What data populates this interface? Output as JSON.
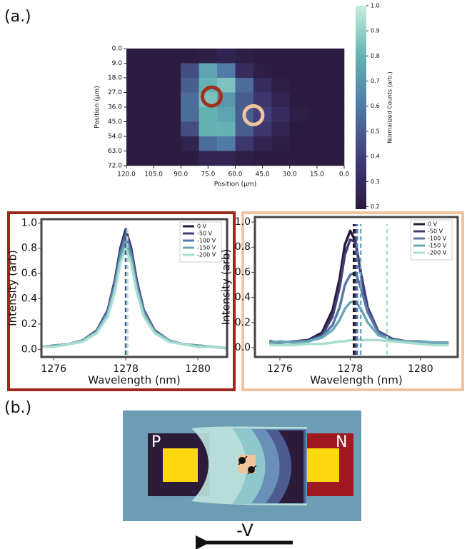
{
  "panel_labels": [
    "(a.)",
    "(b.)"
  ],
  "diagram": {
    "p_label": "P",
    "n_label": "N",
    "bias": "-V"
  },
  "chart_data": [
    {
      "type": "heatmap",
      "xlabel": "Position (μm)",
      "ylabel": "Position (μm)",
      "x": [
        115,
        105,
        95,
        85,
        75,
        65,
        55,
        45,
        35,
        25,
        15,
        5
      ],
      "y": [
        4.5,
        13.5,
        22.5,
        31.5,
        40.5,
        49.5,
        58.5,
        67.5
      ],
      "values": [
        [
          0.2,
          0.2,
          0.2,
          0.2,
          0.22,
          0.25,
          0.22,
          0.2,
          0.2,
          0.2,
          0.2,
          0.2
        ],
        [
          0.2,
          0.2,
          0.2,
          0.45,
          0.75,
          0.6,
          0.3,
          0.22,
          0.2,
          0.2,
          0.2,
          0.2
        ],
        [
          0.2,
          0.2,
          0.2,
          0.5,
          0.8,
          0.85,
          0.55,
          0.3,
          0.22,
          0.2,
          0.2,
          0.2
        ],
        [
          0.2,
          0.2,
          0.2,
          0.55,
          0.85,
          0.7,
          0.5,
          0.35,
          0.25,
          0.2,
          0.2,
          0.2
        ],
        [
          0.2,
          0.2,
          0.2,
          0.55,
          0.8,
          0.75,
          0.5,
          0.4,
          0.3,
          0.22,
          0.2,
          0.2
        ],
        [
          0.2,
          0.2,
          0.2,
          0.45,
          0.8,
          0.8,
          0.5,
          0.35,
          0.25,
          0.2,
          0.2,
          0.2
        ],
        [
          0.2,
          0.2,
          0.2,
          0.25,
          0.55,
          0.6,
          0.35,
          0.25,
          0.22,
          0.2,
          0.2,
          0.2
        ],
        [
          0.2,
          0.2,
          0.2,
          0.2,
          0.25,
          0.25,
          0.22,
          0.2,
          0.2,
          0.2,
          0.2,
          0.2
        ]
      ],
      "xlim": [
        120,
        0
      ],
      "ylim": [
        0,
        72
      ],
      "y_inverted": true,
      "xticks": [
        {
          "value": 120,
          "label": "120.0"
        },
        {
          "value": 105,
          "label": "105.0"
        },
        {
          "value": 90,
          "label": "90.0"
        },
        {
          "value": 75,
          "label": "75.0"
        },
        {
          "value": 60,
          "label": "60.0"
        },
        {
          "value": 45,
          "label": "45.0"
        },
        {
          "value": 30,
          "label": "30.0"
        },
        {
          "value": 15,
          "label": "15.0"
        },
        {
          "value": 0,
          "label": "0.0"
        }
      ],
      "yticks": [
        {
          "value": 0,
          "label": "0.0"
        },
        {
          "value": 9,
          "label": "9.0"
        },
        {
          "value": 18,
          "label": "18.0"
        },
        {
          "value": 27,
          "label": "27.0"
        },
        {
          "value": 36,
          "label": "36.0"
        },
        {
          "value": 45,
          "label": "45.0"
        },
        {
          "value": 54,
          "label": "54.0"
        },
        {
          "value": 63,
          "label": "63.0"
        },
        {
          "value": 72,
          "label": "72.0"
        }
      ],
      "colormap": [
        "#2b1a3f",
        "#403d78",
        "#4f7aa6",
        "#64b1b4",
        "#c8eedd"
      ],
      "colorbar": {
        "label": "Normalized Counts (arb.)",
        "lim": [
          0.19,
          1.0
        ],
        "ticks": [
          {
            "value": 0.2,
            "label": "0.2"
          },
          {
            "value": 0.3,
            "label": "0.3"
          },
          {
            "value": 0.4,
            "label": "0.4"
          },
          {
            "value": 0.5,
            "label": "0.5"
          },
          {
            "value": 0.6,
            "label": "0.6"
          },
          {
            "value": 0.7,
            "label": "0.7"
          },
          {
            "value": 0.8,
            "label": "0.8"
          },
          {
            "value": 0.9,
            "label": "0.9"
          },
          {
            "value": 1.0,
            "label": "1.0"
          }
        ]
      },
      "markers": [
        {
          "x": 73,
          "y": 29.5,
          "color": "#a0301e"
        },
        {
          "x": 50,
          "y": 41,
          "color": "#f2c49d"
        }
      ]
    },
    {
      "type": "line",
      "xlabel": "Wavelength (nm)",
      "ylabel": "Intensity (arb)",
      "frame_color": "#9b2a1a",
      "x": [
        1275.7,
        1276.0,
        1276.4,
        1276.8,
        1277.2,
        1277.5,
        1277.7,
        1277.85,
        1278.0,
        1278.15,
        1278.3,
        1278.5,
        1278.8,
        1279.2,
        1279.6,
        1280.0,
        1280.4,
        1280.8
      ],
      "series": [
        {
          "name": "0 V",
          "color": "#2a1838",
          "center": 1278.0,
          "values": [
            0.02,
            0.03,
            0.04,
            0.07,
            0.15,
            0.31,
            0.55,
            0.8,
            0.95,
            0.8,
            0.55,
            0.31,
            0.15,
            0.07,
            0.04,
            0.03,
            0.02,
            0.01
          ]
        },
        {
          "name": "-50 V",
          "color": "#3f3f78",
          "center": 1278.0,
          "values": [
            0.02,
            0.03,
            0.04,
            0.07,
            0.15,
            0.31,
            0.54,
            0.79,
            0.93,
            0.79,
            0.54,
            0.31,
            0.15,
            0.07,
            0.04,
            0.03,
            0.02,
            0.01
          ]
        },
        {
          "name": "-100 V",
          "color": "#5a78a8",
          "center": 1278.02,
          "values": [
            0.02,
            0.03,
            0.04,
            0.07,
            0.14,
            0.3,
            0.52,
            0.76,
            0.9,
            0.76,
            0.52,
            0.3,
            0.14,
            0.07,
            0.04,
            0.03,
            0.02,
            0.01
          ]
        },
        {
          "name": "-150 V",
          "color": "#6aa8b8",
          "center": 1278.03,
          "values": [
            0.02,
            0.03,
            0.04,
            0.07,
            0.14,
            0.28,
            0.49,
            0.72,
            0.85,
            0.72,
            0.49,
            0.28,
            0.14,
            0.07,
            0.04,
            0.03,
            0.02,
            0.01
          ]
        },
        {
          "name": "-200 V",
          "color": "#a8dccf",
          "center": 1278.05,
          "values": [
            0.02,
            0.02,
            0.04,
            0.06,
            0.13,
            0.26,
            0.46,
            0.68,
            0.8,
            0.68,
            0.46,
            0.26,
            0.13,
            0.06,
            0.04,
            0.02,
            0.02,
            0.01
          ]
        }
      ],
      "xlim": [
        1275.66,
        1280.81
      ],
      "ylim": [
        -0.06,
        1.03
      ],
      "xticks": [
        1276,
        1278,
        1280
      ],
      "yticks": [
        {
          "value": 0,
          "label": "0.0"
        },
        {
          "value": 0.2,
          "label": "0.2"
        },
        {
          "value": 0.4,
          "label": "0.4"
        },
        {
          "value": 0.6,
          "label": "0.6"
        },
        {
          "value": 0.8,
          "label": "0.8"
        },
        {
          "value": 1.0,
          "label": "1.0"
        }
      ],
      "legend": "upper right"
    },
    {
      "type": "line",
      "xlabel": "Wavelength (nm)",
      "ylabel": "Intensity (arb)",
      "frame_color": "#f2c49d",
      "x": [
        1275.7,
        1276.0,
        1276.4,
        1276.8,
        1277.2,
        1277.5,
        1277.7,
        1277.85,
        1278.0,
        1278.15,
        1278.3,
        1278.5,
        1278.8,
        1279.2,
        1279.6,
        1280.0,
        1280.4,
        1280.8
      ],
      "series": [
        {
          "name": "0 V",
          "color": "#2a1838",
          "center": 1278.1,
          "values": [
            0.05,
            0.04,
            0.05,
            0.06,
            0.12,
            0.3,
            0.55,
            0.82,
            0.93,
            0.85,
            0.6,
            0.3,
            0.13,
            0.07,
            0.05,
            0.04,
            0.04,
            0.03
          ]
        },
        {
          "name": "-50 V",
          "color": "#3f3f78",
          "center": 1278.15,
          "values": [
            0.04,
            0.05,
            0.04,
            0.06,
            0.1,
            0.25,
            0.48,
            0.74,
            0.86,
            0.84,
            0.6,
            0.32,
            0.13,
            0.07,
            0.05,
            0.05,
            0.04,
            0.04
          ]
        },
        {
          "name": "-100 V",
          "color": "#5a78a8",
          "center": 1278.2,
          "values": [
            0.04,
            0.04,
            0.05,
            0.05,
            0.09,
            0.18,
            0.32,
            0.5,
            0.58,
            0.6,
            0.48,
            0.28,
            0.12,
            0.06,
            0.05,
            0.04,
            0.04,
            0.04
          ]
        },
        {
          "name": "-150 V",
          "color": "#6aa8b8",
          "center": 1278.3,
          "values": [
            0.04,
            0.05,
            0.04,
            0.05,
            0.08,
            0.14,
            0.22,
            0.31,
            0.36,
            0.37,
            0.31,
            0.2,
            0.1,
            0.06,
            0.05,
            0.05,
            0.04,
            0.04
          ]
        },
        {
          "name": "-200 V",
          "color": "#a8dccf",
          "center": 1279.05,
          "values": [
            0.02,
            0.02,
            0.02,
            0.03,
            0.03,
            0.04,
            0.05,
            0.05,
            0.06,
            0.06,
            0.06,
            0.06,
            0.06,
            0.05,
            0.04,
            0.03,
            0.02,
            0.02
          ]
        }
      ],
      "xlim": [
        1275.29,
        1281.06
      ],
      "ylim": [
        -0.074,
        1.04
      ],
      "xticks": [
        1276,
        1278,
        1280
      ],
      "yticks": [
        {
          "value": 0,
          "label": "0.0"
        },
        {
          "value": 0.2,
          "label": "0.2"
        },
        {
          "value": 0.4,
          "label": "0.4"
        },
        {
          "value": 0.6,
          "label": "0.6"
        },
        {
          "value": 0.8,
          "label": "0.8"
        },
        {
          "value": 1.0,
          "label": "1.0"
        }
      ],
      "legend": "upper right"
    }
  ]
}
